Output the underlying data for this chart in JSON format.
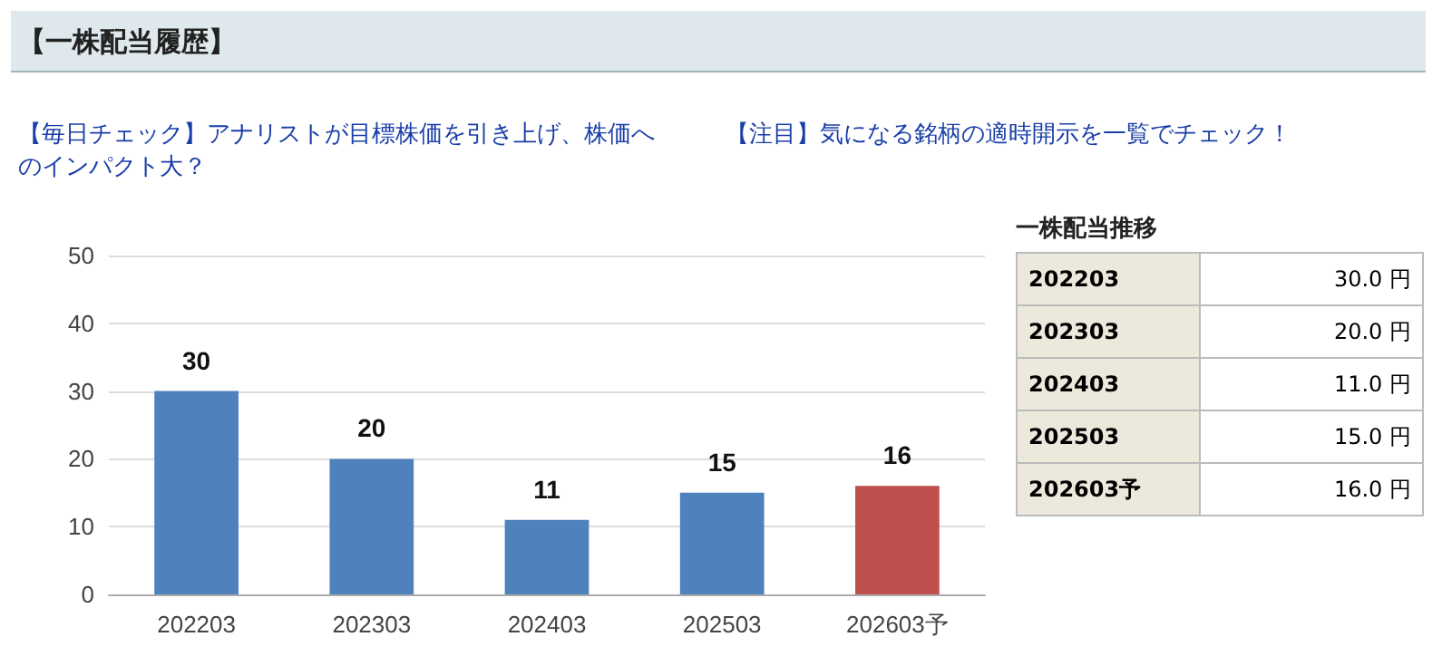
{
  "chart_data": {
    "type": "bar",
    "title": "【一株配当履歴】",
    "annotations": [
      "【毎日チェック】アナリストが目標株価を引き上げ、株価へのインパクト大？",
      "【注目】気になる銘柄の適時開示を一覧でチェック！",
      "一株配当推移",
      "202203",
      "30.0 円",
      "202303",
      "20.0 円",
      "202403",
      "11.0 円",
      "202503",
      "15.0 円",
      "202603予",
      "16.0 円"
    ],
    "categories": [
      "202203",
      "202303",
      "202403",
      "202503",
      "202603予"
    ],
    "values": [
      30,
      20,
      11,
      15,
      16
    ],
    "colors": [
      "#4f81bd",
      "#4f81bd",
      "#4f81bd",
      "#4f81bd",
      "#c0504d"
    ],
    "ylim": [
      0,
      50
    ],
    "yticks": [
      0,
      10,
      20,
      30,
      40,
      50
    ],
    "grid": "y",
    "data_labels": true
  }
}
